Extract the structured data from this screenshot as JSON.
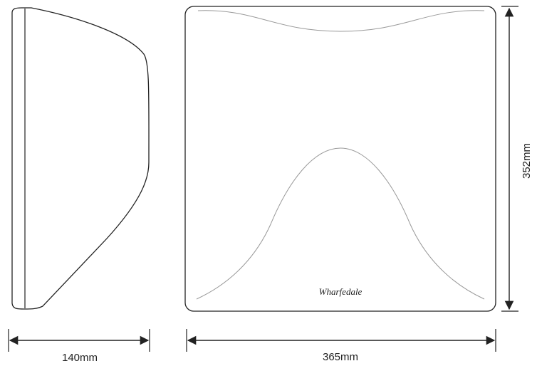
{
  "side_view": {
    "width_label": "140mm"
  },
  "front_view": {
    "width_label": "365mm",
    "height_label": "352mm",
    "brand_logo": "Wharfedale"
  }
}
